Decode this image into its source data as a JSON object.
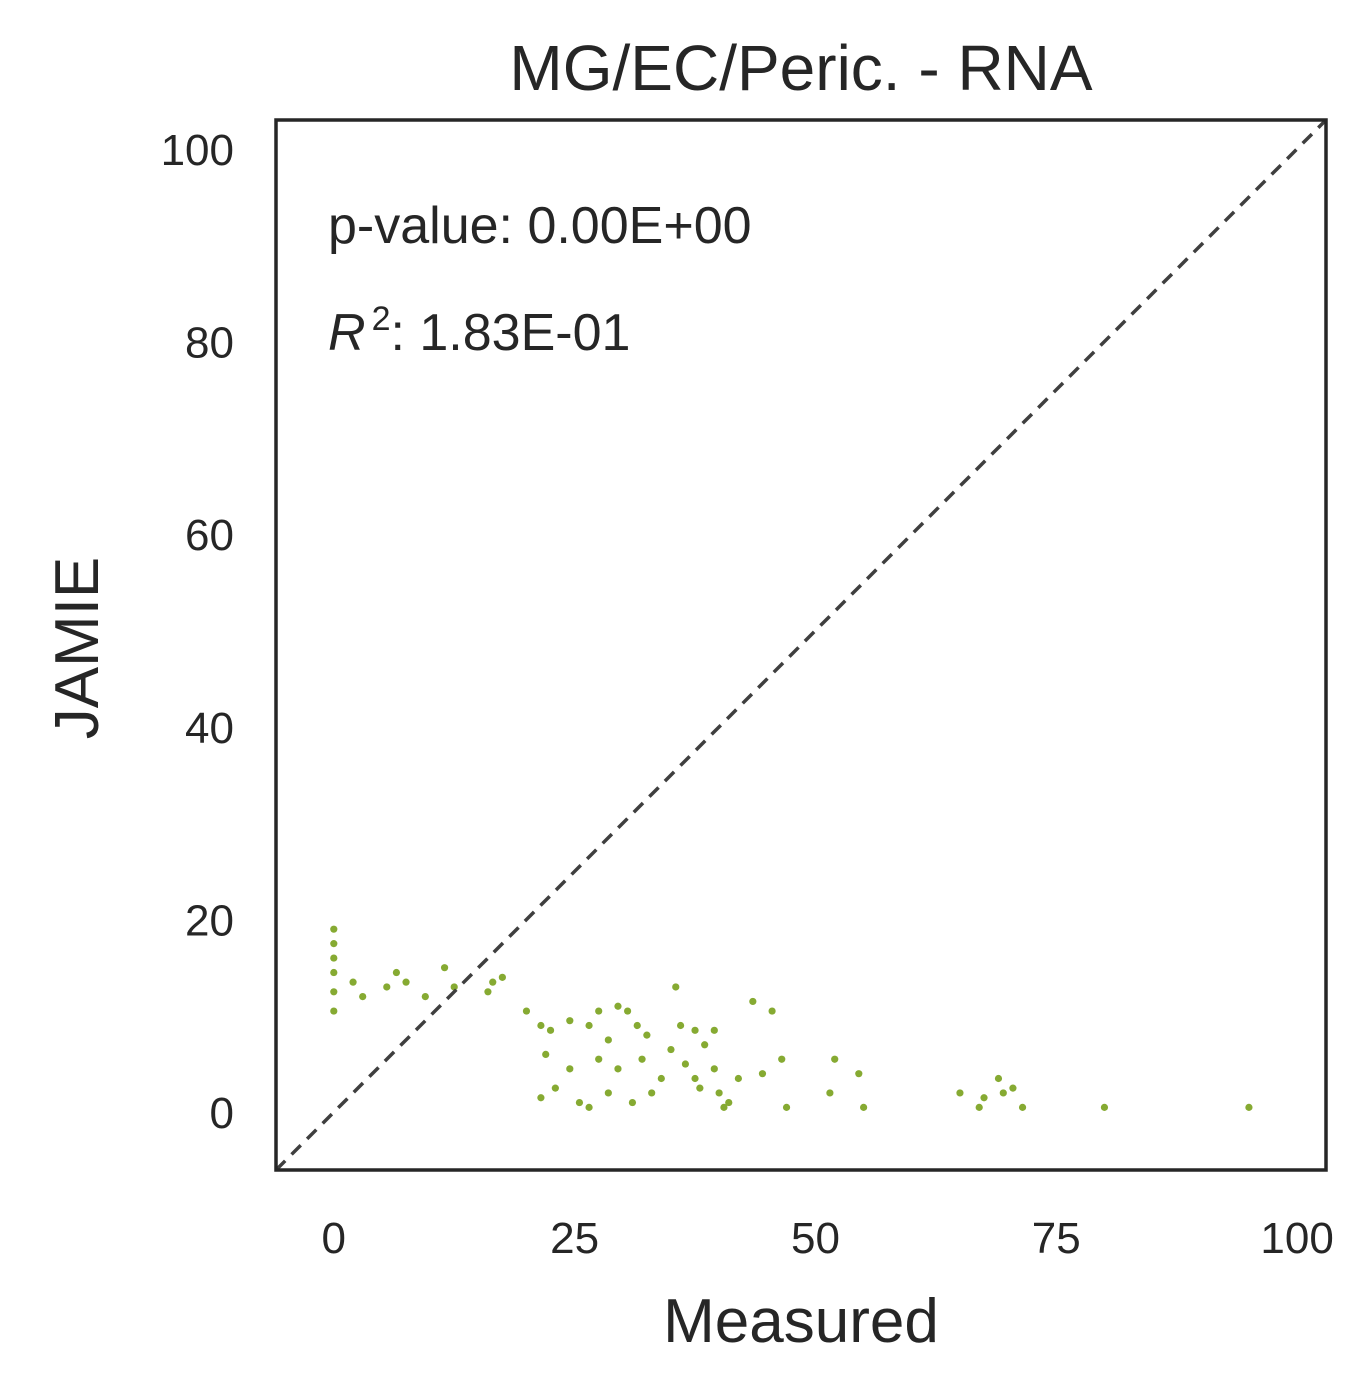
{
  "chart_data": {
    "type": "scatter",
    "title": "MG/EC/Peric. - RNA",
    "xlabel": "Measured",
    "ylabel": "JAMIE",
    "xlim": [
      -6,
      103
    ],
    "ylim": [
      -6,
      103
    ],
    "xticks": [
      0,
      25,
      50,
      75,
      100
    ],
    "yticks": [
      0,
      20,
      40,
      60,
      80,
      100
    ],
    "xtick_labels": [
      "0",
      "25",
      "50",
      "75",
      "100"
    ],
    "ytick_labels": [
      "0",
      "20",
      "40",
      "60",
      "80",
      "100"
    ],
    "grid": false,
    "reference_line": "y = x (dashed)",
    "annotations": {
      "pvalue": "p-value: 0.00E+00",
      "r2_symbol": "R",
      "r2_exponent": "2",
      "r2_value": ": 1.83E-01"
    },
    "point_color": "#86aa32",
    "line_color": "#3f3f3f",
    "series": [
      {
        "points": [
          [
            0.0,
            19.0
          ],
          [
            0.0,
            17.5
          ],
          [
            0.0,
            16.0
          ],
          [
            0.0,
            14.5
          ],
          [
            0.0,
            12.5
          ],
          [
            0.0,
            10.5
          ],
          [
            2.0,
            13.5
          ],
          [
            3.0,
            12.0
          ],
          [
            5.5,
            13.0
          ],
          [
            6.5,
            14.5
          ],
          [
            7.5,
            13.5
          ],
          [
            11.5,
            15.0
          ],
          [
            12.5,
            13.0
          ],
          [
            16.5,
            13.5
          ],
          [
            17.5,
            14.0
          ],
          [
            16.0,
            12.5
          ],
          [
            9.5,
            12.0
          ],
          [
            20.0,
            10.5
          ],
          [
            21.5,
            9.0
          ],
          [
            22.5,
            8.5
          ],
          [
            24.5,
            9.5
          ],
          [
            26.5,
            9.0
          ],
          [
            27.5,
            10.5
          ],
          [
            28.5,
            7.5
          ],
          [
            29.5,
            11.0
          ],
          [
            30.5,
            10.5
          ],
          [
            31.5,
            9.0
          ],
          [
            32.5,
            8.0
          ],
          [
            35.5,
            13.0
          ],
          [
            36.0,
            9.0
          ],
          [
            37.5,
            8.5
          ],
          [
            38.5,
            7.0
          ],
          [
            39.5,
            8.5
          ],
          [
            39.5,
            4.5
          ],
          [
            38.0,
            2.5
          ],
          [
            37.5,
            3.5
          ],
          [
            36.5,
            5.0
          ],
          [
            35.0,
            6.5
          ],
          [
            34.0,
            3.5
          ],
          [
            33.0,
            2.0
          ],
          [
            32.0,
            5.5
          ],
          [
            31.0,
            1.0
          ],
          [
            29.5,
            4.5
          ],
          [
            28.5,
            2.0
          ],
          [
            27.5,
            5.5
          ],
          [
            26.5,
            0.5
          ],
          [
            25.5,
            1.0
          ],
          [
            24.5,
            4.5
          ],
          [
            23.0,
            2.5
          ],
          [
            22.0,
            6.0
          ],
          [
            21.5,
            1.5
          ],
          [
            40.5,
            0.5
          ],
          [
            41.0,
            1.0
          ],
          [
            40.0,
            2.0
          ],
          [
            42.0,
            3.5
          ],
          [
            43.5,
            11.5
          ],
          [
            44.5,
            4.0
          ],
          [
            45.5,
            10.5
          ],
          [
            46.5,
            5.5
          ],
          [
            47.0,
            0.5
          ],
          [
            51.5,
            2.0
          ],
          [
            52.0,
            5.5
          ],
          [
            54.5,
            4.0
          ],
          [
            55.0,
            0.5
          ],
          [
            65.0,
            2.0
          ],
          [
            67.0,
            0.5
          ],
          [
            67.5,
            1.5
          ],
          [
            69.0,
            3.5
          ],
          [
            69.5,
            2.0
          ],
          [
            70.5,
            2.5
          ],
          [
            71.5,
            0.5
          ],
          [
            80.0,
            0.5
          ],
          [
            95.0,
            0.5
          ]
        ]
      }
    ]
  }
}
